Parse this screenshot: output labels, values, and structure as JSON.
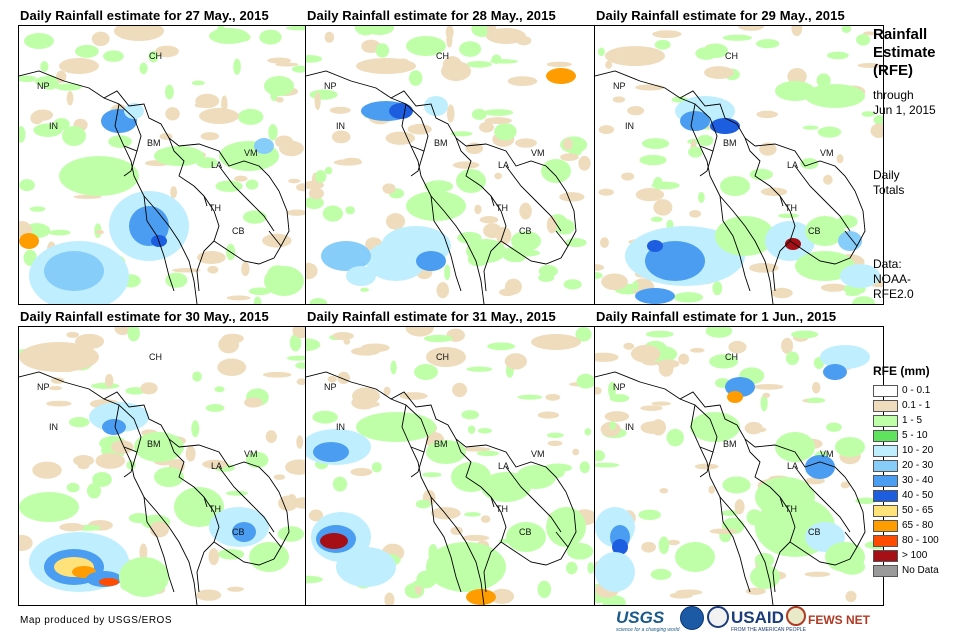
{
  "panels": [
    {
      "title": "Daily Rainfall estimate for 27 May., 2015"
    },
    {
      "title": "Daily Rainfall estimate for 28 May., 2015"
    },
    {
      "title": "Daily Rainfall estimate for 29 May., 2015"
    },
    {
      "title": "Daily Rainfall estimate for 30 May., 2015"
    },
    {
      "title": "Daily Rainfall estimate for 31 May., 2015"
    },
    {
      "title": "Daily Rainfall estimate for 1 Jun., 2015"
    }
  ],
  "country_labels": {
    "CH": "CH",
    "NP": "NP",
    "IN": "IN",
    "BM": "BM",
    "LA": "LA",
    "VM": "VM",
    "TH": "TH",
    "CB": "CB"
  },
  "sidebar": {
    "title_line1": "Rainfall",
    "title_line2": "Estimate",
    "title_line3": "(RFE)",
    "through": "through",
    "date": "Jun 1, 2015",
    "daily": "Daily",
    "totals": "Totals",
    "data_label": "Data:",
    "data_source1": "NOAA-",
    "data_source2": "RFE2.0"
  },
  "legend": {
    "title": "RFE (mm)",
    "items": [
      {
        "label": "0 - 0.1",
        "color": "#ffffff"
      },
      {
        "label": "0.1 - 1",
        "color": "#efdcbc"
      },
      {
        "label": "1 - 5",
        "color": "#bfffa8"
      },
      {
        "label": "5 - 10",
        "color": "#5fe35f"
      },
      {
        "label": "10 - 20",
        "color": "#bfefff"
      },
      {
        "label": "20 - 30",
        "color": "#87cdfa"
      },
      {
        "label": "30 - 40",
        "color": "#4a9df0"
      },
      {
        "label": "40 - 50",
        "color": "#1d5ee0"
      },
      {
        "label": "50 - 65",
        "color": "#ffe27a"
      },
      {
        "label": "65 - 80",
        "color": "#ff9d00"
      },
      {
        "label": "80 - 100",
        "color": "#ff4c00"
      },
      {
        "label": "> 100",
        "color": "#a50f15"
      },
      {
        "label": "No Data",
        "color": "#9a9a9a"
      }
    ]
  },
  "credit": "Map produced by USGS/EROS",
  "logos": {
    "usgs": "USGS",
    "usgs_tagline": "science for a changing world",
    "usaid": "USAID",
    "usaid_tagline": "FROM THE AMERICAN PEOPLE",
    "fews": "FEWS NET"
  }
}
